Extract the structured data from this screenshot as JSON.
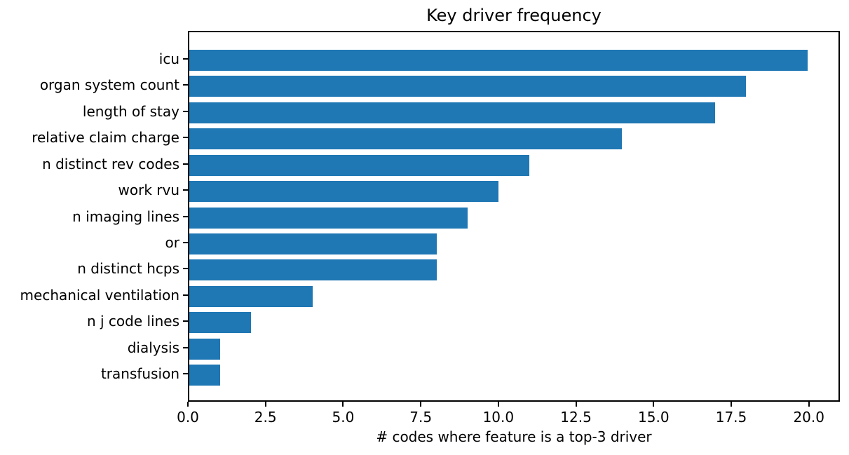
{
  "chart_data": {
    "type": "bar",
    "orientation": "horizontal",
    "title": "Key driver frequency",
    "xlabel": "# codes where feature is a top-3 driver",
    "ylabel": "",
    "categories": [
      "icu",
      "organ system count",
      "length of stay",
      "relative claim charge",
      "n distinct rev codes",
      "work rvu",
      "n imaging lines",
      "or",
      "n distinct hcps",
      "mechanical ventilation",
      "n j code lines",
      "dialysis",
      "transfusion"
    ],
    "values": [
      20,
      18,
      17,
      14,
      11,
      10,
      9,
      8,
      8,
      4,
      2,
      1,
      1
    ],
    "xlim": [
      0,
      21
    ],
    "xticks": [
      0.0,
      2.5,
      5.0,
      7.5,
      10.0,
      12.5,
      15.0,
      17.5,
      20.0
    ],
    "xtick_labels": [
      "0.0",
      "2.5",
      "5.0",
      "7.5",
      "10.0",
      "12.5",
      "15.0",
      "17.5",
      "20.0"
    ],
    "grid": false,
    "legend_position": "none",
    "bar_color": "#1f77b4",
    "background_color": "#ffffff",
    "spine_color": "#000000",
    "text_color": "#000000"
  }
}
